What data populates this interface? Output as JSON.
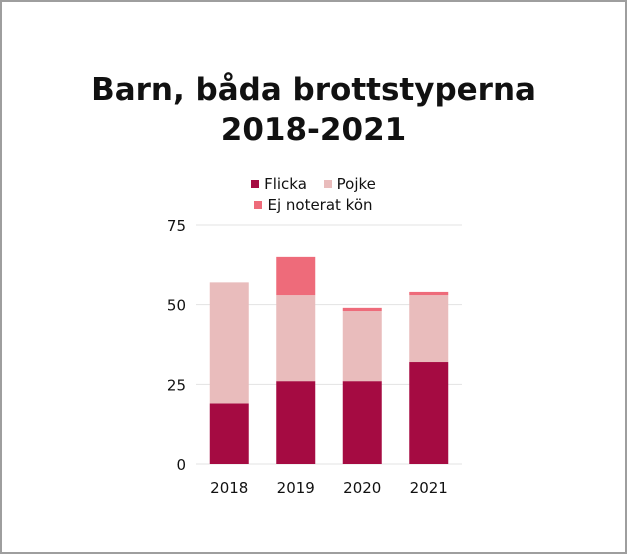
{
  "chart_data": {
    "type": "bar",
    "stacked": true,
    "title": [
      "Barn, båda brottstyperna",
      "2018-2021"
    ],
    "categories": [
      "2018",
      "2019",
      "2020",
      "2021"
    ],
    "series": [
      {
        "name": "Flicka",
        "color": "#a50b42",
        "values": [
          19,
          26,
          26,
          32
        ]
      },
      {
        "name": "Pojke",
        "color": "#e9bcbc",
        "values": [
          38,
          27,
          22,
          21
        ]
      },
      {
        "name": "Ej noterat kön",
        "color": "#ee6b7a",
        "values": [
          0,
          12,
          1,
          1
        ]
      }
    ],
    "yticks": [
      "0",
      "25",
      "50",
      "75"
    ],
    "ylim": [
      0,
      75
    ],
    "grid": true,
    "legend_position": "top-center"
  }
}
